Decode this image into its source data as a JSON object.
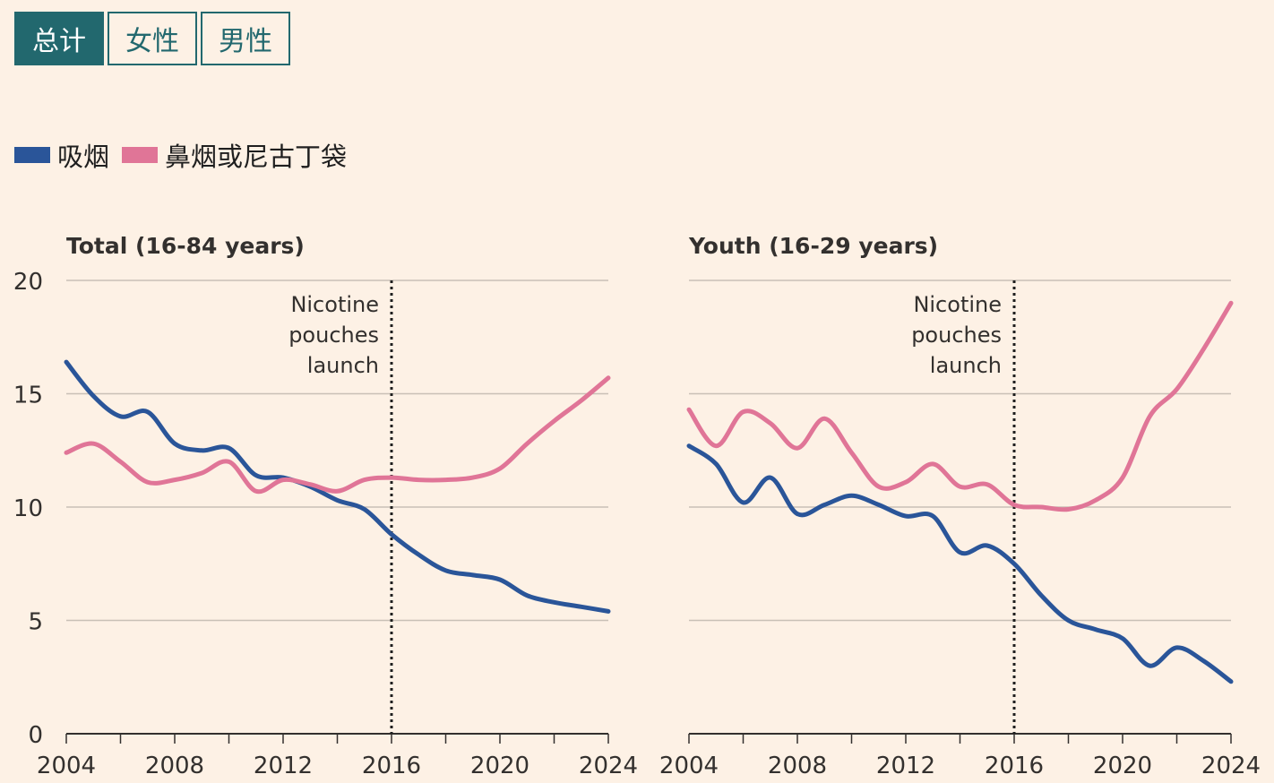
{
  "tabs": [
    {
      "label": "总计",
      "active": true
    },
    {
      "label": "女性",
      "active": false
    },
    {
      "label": "男性",
      "active": false
    }
  ],
  "legend": [
    {
      "label": "吸烟",
      "color": "#2a5599"
    },
    {
      "label": "鼻烟或尼古丁袋",
      "color": "#e07597"
    }
  ],
  "chart_data": [
    {
      "type": "line",
      "title": "Total (16-84 years)",
      "xlim": [
        2004,
        2024
      ],
      "ylim": [
        0,
        20
      ],
      "xticks": [
        2004,
        2008,
        2012,
        2016,
        2020,
        2024
      ],
      "yticks": [
        0,
        5,
        10,
        15,
        20
      ],
      "annotation": {
        "x": 2016,
        "lines": [
          "Nicotine",
          "pouches",
          "launch"
        ]
      },
      "x": [
        2004,
        2005,
        2006,
        2007,
        2008,
        2009,
        2010,
        2011,
        2012,
        2013,
        2014,
        2015,
        2016,
        2017,
        2018,
        2019,
        2020,
        2021,
        2022,
        2023,
        2024
      ],
      "series": [
        {
          "name": "吸烟",
          "color": "#2a5599",
          "values": [
            16.4,
            14.9,
            14.0,
            14.2,
            12.8,
            12.5,
            12.6,
            11.4,
            11.3,
            10.9,
            10.3,
            9.9,
            8.8,
            7.9,
            7.2,
            7.0,
            6.8,
            6.1,
            5.8,
            5.6,
            5.4
          ]
        },
        {
          "name": "鼻烟或尼古丁袋",
          "color": "#e07597",
          "values": [
            12.4,
            12.8,
            12.0,
            11.1,
            11.2,
            11.5,
            12.0,
            10.7,
            11.2,
            11.0,
            10.7,
            11.2,
            11.3,
            11.2,
            11.2,
            11.3,
            11.7,
            12.8,
            13.8,
            14.7,
            15.7
          ]
        }
      ]
    },
    {
      "type": "line",
      "title": "Youth (16-29 years)",
      "xlim": [
        2004,
        2024
      ],
      "ylim": [
        0,
        20
      ],
      "xticks": [
        2004,
        2008,
        2012,
        2016,
        2020,
        2024
      ],
      "yticks": [
        0,
        5,
        10,
        15,
        20
      ],
      "annotation": {
        "x": 2016,
        "lines": [
          "Nicotine",
          "pouches",
          "launch"
        ]
      },
      "x": [
        2004,
        2005,
        2006,
        2007,
        2008,
        2009,
        2010,
        2011,
        2012,
        2013,
        2014,
        2015,
        2016,
        2017,
        2018,
        2019,
        2020,
        2021,
        2022,
        2023,
        2024
      ],
      "series": [
        {
          "name": "吸烟",
          "color": "#2a5599",
          "values": [
            12.7,
            11.9,
            10.2,
            11.3,
            9.7,
            10.1,
            10.5,
            10.1,
            9.6,
            9.6,
            8.0,
            8.3,
            7.5,
            6.1,
            5.0,
            4.6,
            4.2,
            3.0,
            3.8,
            3.2,
            2.3
          ]
        },
        {
          "name": "鼻烟或尼古丁袋",
          "color": "#e07597",
          "values": [
            14.3,
            12.7,
            14.2,
            13.7,
            12.6,
            13.9,
            12.4,
            10.9,
            11.1,
            11.9,
            10.9,
            11.0,
            10.1,
            10.0,
            9.9,
            10.3,
            11.3,
            14.0,
            15.2,
            17.0,
            19.0
          ]
        }
      ]
    }
  ]
}
